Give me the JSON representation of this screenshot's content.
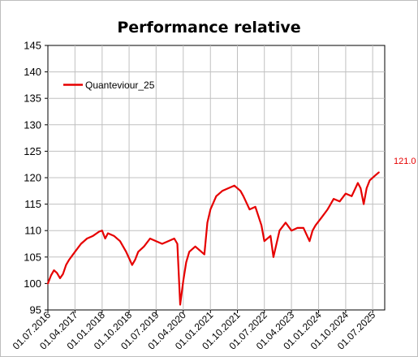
{
  "chart_data": {
    "type": "line",
    "title": "Performance relative",
    "xlabel": "",
    "ylabel": "",
    "ylim": [
      95,
      145
    ],
    "yticks": [
      95,
      100,
      105,
      110,
      115,
      120,
      125,
      130,
      135,
      140,
      145
    ],
    "xticks": [
      "01.07.2016",
      "01.04.2017",
      "01.01.2018",
      "01.10.2018",
      "01.07.2019",
      "01.04.2020",
      "01.01.2021",
      "01.10.2021",
      "01.07.2022",
      "01.04.2023",
      "01.01.2024",
      "01.10.2024",
      "01.07.2025"
    ],
    "grid": true,
    "legend_position": "top-left",
    "end_value_label": "121.0",
    "colors": {
      "series": "#e60000",
      "end_label": "#e60000",
      "grid": "#c0c0c0",
      "axis": "#000000"
    },
    "series": [
      {
        "name": "Quanteviour_25",
        "x": [
          "01.07.2016",
          "01.08.2016",
          "01.09.2016",
          "01.10.2016",
          "01.11.2016",
          "01.12.2016",
          "01.01.2017",
          "01.02.2017",
          "01.04.2017",
          "01.06.2017",
          "01.08.2017",
          "01.10.2017",
          "01.12.2017",
          "01.01.2018",
          "01.02.2018",
          "01.03.2018",
          "01.05.2018",
          "01.07.2018",
          "01.09.2018",
          "01.11.2018",
          "01.12.2018",
          "01.01.2019",
          "01.03.2019",
          "01.05.2019",
          "01.07.2019",
          "01.09.2019",
          "01.11.2019",
          "01.01.2020",
          "01.02.2020",
          "01.03.2020",
          "01.04.2020",
          "01.05.2020",
          "01.06.2020",
          "01.08.2020",
          "01.10.2020",
          "01.11.2020",
          "01.12.2020",
          "01.01.2021",
          "01.03.2021",
          "01.05.2021",
          "01.07.2021",
          "01.09.2021",
          "01.11.2021",
          "01.12.2021",
          "01.02.2022",
          "01.04.2022",
          "01.06.2022",
          "01.07.2022",
          "01.09.2022",
          "01.10.2022",
          "01.12.2022",
          "01.02.2023",
          "01.04.2023",
          "01.06.2023",
          "01.08.2023",
          "01.10.2023",
          "01.11.2023",
          "01.12.2023",
          "01.02.2024",
          "01.04.2024",
          "01.06.2024",
          "01.08.2024",
          "01.10.2024",
          "01.12.2024",
          "01.02.2025",
          "01.03.2025",
          "01.04.2025",
          "01.05.2025",
          "01.06.2025",
          "01.08.2025",
          "01.09.2025"
        ],
        "values": [
          100.0,
          101.5,
          102.5,
          102.0,
          101.0,
          101.8,
          103.5,
          104.5,
          106.0,
          107.5,
          108.5,
          109.0,
          109.8,
          110.0,
          108.5,
          109.5,
          109.0,
          108.0,
          106.0,
          103.5,
          104.5,
          106.0,
          107.0,
          108.5,
          108.0,
          107.5,
          108.0,
          108.5,
          107.5,
          96.0,
          100.5,
          104.0,
          106.0,
          107.0,
          106.0,
          105.5,
          111.5,
          114.0,
          116.5,
          117.5,
          118.0,
          118.5,
          117.5,
          116.5,
          114.0,
          114.5,
          111.0,
          108.0,
          109.0,
          105.0,
          110.0,
          111.5,
          110.0,
          110.5,
          110.5,
          108.0,
          110.0,
          111.0,
          112.5,
          114.0,
          116.0,
          115.5,
          117.0,
          116.5,
          119.0,
          118.0,
          115.0,
          118.0,
          119.5,
          120.5,
          121.0
        ]
      }
    ]
  }
}
